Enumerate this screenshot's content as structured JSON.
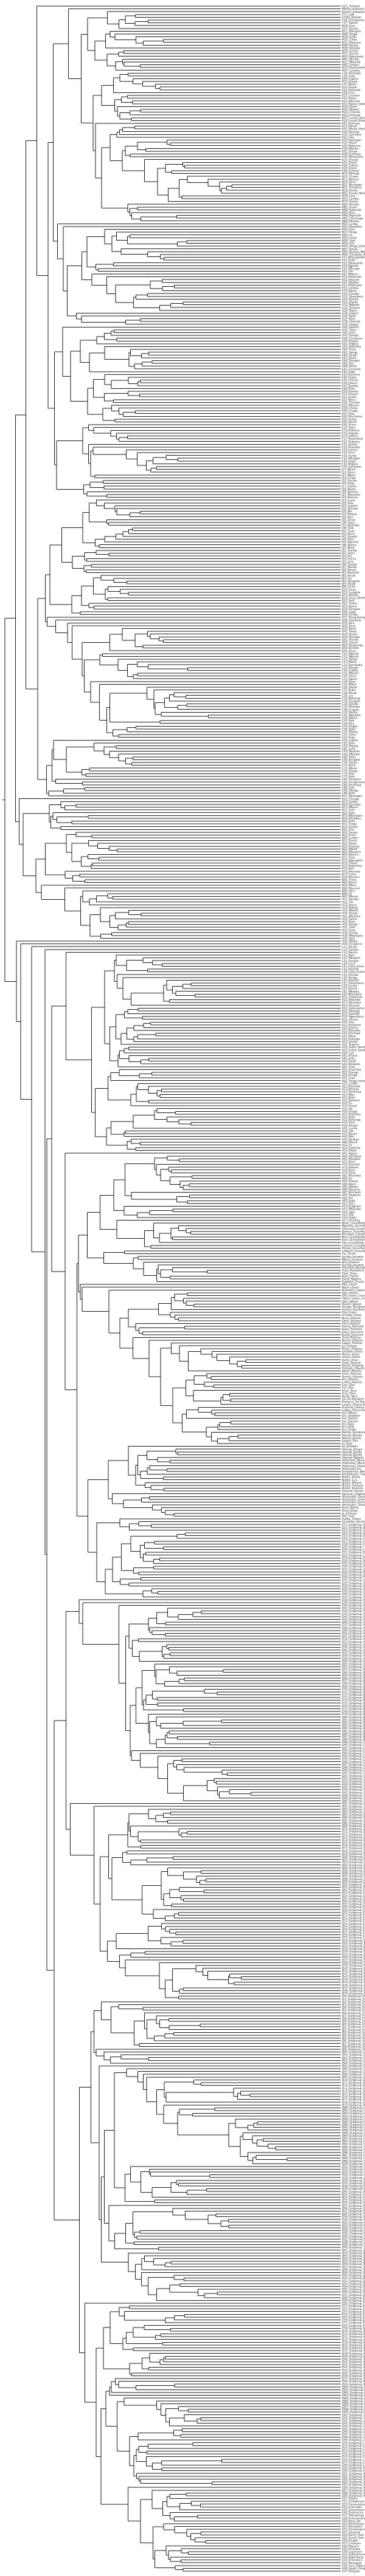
{
  "figure": {
    "type": "phylogenetic-tree",
    "branch_color": "#1a1a1a",
    "label_color": "#222222",
    "background": "#ffffff"
  },
  "tips": [
    "G11_Turkana",
    "Mbola_Jadawain",
    "Beleza_Jadawain",
    "T17_Lodi",
    "Chibit_Bolodo",
    "T19_Chimpanze",
    "T17_Tabola",
    "M18_Ruzi",
    "G11_Kasulu",
    "B11_Vaingola",
    "M46_Tonga",
    "M30_Ulafu",
    "M12_Chibu",
    "M11_Mwanza",
    "M40_Nyayo",
    "M36_Sioneke",
    "N18_Louisa",
    "M21_Kansiri",
    "M24_Wakaheka",
    "M41_Murafu",
    "M17_Mbunda",
    "M45_Sampo",
    "M39_Nyakalamba",
    "M37_Lunyiko",
    "L19_Vimango",
    "L18_Suku",
    "K40_Ingana",
    "B10_Jitaala",
    "L21_Naulo",
    "K23_Myala",
    "K16_Bukwala",
    "K18_Lina",
    "K17_Lucema",
    "K21_Kaqui",
    "K22_Mbunda",
    "K15_Nguon_Kalohu",
    "M34_Kaolo",
    "M10_Malawi",
    "M23_Chanda",
    "M20_Kalenge",
    "M27_Lunda_Ishinde",
    "K14_Lunda_Kazembe",
    "K41_Kamaya",
    "K11_Nkoya",
    "K42_Nkoya_Mashasha",
    "K30_Nyengo",
    "K31_Lyamaka",
    "K12_Fwe",
    "K33_Kwangali",
    "K32_Mashi",
    "K35_Makoma",
    "K34_Mbowe",
    "K43_Simaa",
    "K39_Imilangu",
    "K36_Mbukushu",
    "K37_Shanjo",
    "K24_Totela",
    "K26_Subiya",
    "K19_Sanjo",
    "K38_Kuhane",
    "N24_Nsenga",
    "N15_Chewa",
    "N13_Nyanja",
    "N20_Sena",
    "N21_Nyungwe",
    "N31_Tumbuka",
    "N28_Kunda",
    "N41_Kunda_Ntakwa",
    "M70_Lala",
    "M71_Lamba",
    "M72_Swaka",
    "M62_Bemba",
    "M61_Aushi",
    "M60_Kabende",
    "M63_Bisa",
    "M64_Ngumbo",
    "M65_Chishinga",
    "M66_Mukulu",
    "M52_Lungu",
    "M51_Mambwe",
    "M53_Fipa",
    "N23_Tonga",
    "M50_Ila",
    "M53_Lenje",
    "M54_Sala",
    "M55_Soli",
    "M56_Tonga_Zambia",
    "M57_Totela",
    "M42_Nyanja_Malawi",
    "M43_Tumbuka_Malawi",
    "P11_Ndengeleko",
    "P12_Ruihi",
    "P13_Matuumbi",
    "P14_Ngindo",
    "P15_Mbunga",
    "P21_Yao",
    "P22_Mwera",
    "P23_Makonde",
    "P24_Ndonde",
    "P25_Mabiha",
    "P31_Makhuwa",
    "P32_Lomwe",
    "P33_Ngulu",
    "P34_Chuabo",
    "G23_Shambala",
    "G24_Bondei",
    "G31_Zigula",
    "G32_Ngwele",
    "G33_Zaramo",
    "G34_Ngulu",
    "G35_Luguru",
    "G36_Kami",
    "G37_Kutu",
    "G38_Vidunda",
    "G39_Sagala",
    "G40_Swahili",
    "G41_Tikuu",
    "G42_Amu",
    "G43_Pemba",
    "G44_Comorian",
    "G50_Pogolo",
    "G51_Pogoro",
    "G52_Ndamba",
    "G60_Hehe",
    "G61_Sangu",
    "G62_Kinga",
    "G63_Bena",
    "G64_Pangwa",
    "G65_Kisi",
    "G66_Wanji",
    "E41_Giryama",
    "E42_Digo",
    "E43_Duruma",
    "E44_Rabai",
    "E45_Chonyi",
    "E46_Jibana",
    "E47_Kambe",
    "E48_Ribe",
    "E50_Kamba",
    "E51_Kikuyu",
    "E52_Embu",
    "E53_Meru",
    "E54_Tharaka",
    "E55_Mbeere",
    "E56_Chuka",
    "E60_Chaga",
    "E61_Rwo",
    "E62_Machame",
    "E63_Vunjo",
    "E64_Mochi",
    "E65_Kiseri",
    "E70_Taita",
    "E71_Pokomo",
    "E72_Sagala",
    "E73_Gweno",
    "F11_Nyamwezi",
    "F12_Sukuma",
    "F21_Kimbu",
    "F22_Nilamba",
    "F23_Isanzu",
    "F24_Rimi",
    "F25_Irangi",
    "F31_Mbugwe",
    "F32_Gogo",
    "F33_Kagulu",
    "F34_Sandawe",
    "J11_Nyoro",
    "J12_Tooro",
    "J13_Nkore",
    "J14_Chiga",
    "J15_Ganda",
    "J16_Soga",
    "J17_Gwere",
    "J18_Nyole",
    "J19_Saamia",
    "J21_Masaaba",
    "J22_Bukusu",
    "J23_Luyia",
    "J24_Kisa",
    "J25_Logooli",
    "J31_Kerewe",
    "J32_Jita",
    "J33_Kwaya",
    "J34_Ruri",
    "J35_Zinza",
    "J36_Haya",
    "J37_Nyambo",
    "J38_Subi",
    "J41_Gusii",
    "J42_Kuria",
    "J43_Zanaki",
    "J44_Ikizu",
    "J45_Ngurimi",
    "J46_Ikoma",
    "J47_Nata",
    "J51_Hunde",
    "J52_Havu",
    "J53_Shi",
    "J54_Fuliiru",
    "J55_Vira",
    "J56_Tembo",
    "J57_Nande",
    "J58_Konzo",
    "J61_Rwanda",
    "J62_Rundi",
    "J63_Ha",
    "J64_Hangaza",
    "J65_Shubi",
    "J66_Vinza",
    "D11_Enya",
    "D12_Lengola",
    "D13_Mituku",
    "D14_Enya_North",
    "D21_Bali",
    "D22_Amba",
    "D23_Komo",
    "D24_Songola",
    "D25_Lega",
    "D26_Zimba",
    "D27_Bangubangu",
    "D28_Holoholo",
    "D31_Bira",
    "D32_Bera",
    "D33_Nyali",
    "D41_Konjo",
    "D42_Nandi",
    "D43_Nyanga",
    "D51_Hunde",
    "D52_Haavu",
    "D53_Nyabungu",
    "D54_Bembe",
    "D55_Buyu",
    "C10_Ngundi",
    "C11_Ngondi",
    "C12_Pande",
    "C13_Mbati",
    "C14_Bomitaba",
    "C15_Bongili",
    "C16_Lobala",
    "C21_Mboshi",
    "C22_Akwa",
    "C23_Ngare",
    "C24_Koyo",
    "C25_Mbosi",
    "C26_Kwala",
    "C27_Kuba",
    "C30_Bangi",
    "C31_Loi",
    "C32_Bobangi",
    "C33_Sengele",
    "C34_Sakata",
    "C35_Ntomba",
    "C36_Lingala",
    "C37_Budza",
    "C41_Ngombe",
    "C42_Bwela",
    "C43_Bati",
    "C44_Boa",
    "C45_Angba",
    "C50_Soko",
    "C51_Mbesa",
    "C52_Sokol",
    "C53_Poke",
    "C54_Lokele",
    "C55_Kele",
    "C61_Mongo",
    "C62_Lalia",
    "C63_Ngando",
    "C64_Ntomba",
    "C65_Bolia",
    "C66_Sengele",
    "C70_Tetela",
    "C71_Kusu",
    "C72_Nkutu",
    "C73_Sungu",
    "C74_Yela",
    "C75_Kela",
    "C81_Dengese",
    "C82_Songomeno",
    "C83_Bushong",
    "C84_Lele",
    "C85_Wongo",
    "C86_Kete",
    "B11_Mpongwe",
    "B12_Orungu",
    "B13_Galwa",
    "B14_Dyumba",
    "B15_Mbumi",
    "B21_Seki",
    "B22_Kele",
    "B23_Mbangwe",
    "B24_Wumbvu",
    "B25_Kota",
    "B31_Tsogo",
    "B32_Kande",
    "B41_Sira",
    "B42_Sangu",
    "B43_Punu",
    "B44_Lumbu",
    "B51_Duma",
    "B52_Nzebi",
    "B53_Tsaangi",
    "B61_Mbete",
    "B62_Mbaama",
    "B63_Ndumu",
    "B71_Teke",
    "B72_Ngungwel",
    "B73_Tsaayi",
    "B74_Ndzindziu",
    "B75_Bali",
    "B76_Mosieno",
    "B77_Fumu",
    "B78_Wuumu",
    "B81_Tiene",
    "B82_Boma",
    "B83_Mfinu",
    "B84_Mpuono",
    "B85_Yans",
    "B86_Di",
    "B87_Mbuun",
    "H11_Bembe",
    "H12_Vili",
    "H13_Kunyi",
    "H14_Ndingi",
    "H15_Mboka",
    "H16_Kongo",
    "H21_Mbundu",
    "H22_Sama",
    "H23_Bolo",
    "H24_Songo",
    "H31_Yaka",
    "H32_Suku",
    "H33_Hungu",
    "H34_Mbangala",
    "H35_Sinji",
    "H41_Mbala",
    "H42_Hungana",
    "L11_Pende",
    "L12_Samba",
    "L13_Kwezo",
    "L21_Kete",
    "L22_Mbagani",
    "L23_Songye",
    "L24_Luna",
    "L31_Luba_Kasai",
    "L32_Kanyok",
    "L33_Luba_Katanga",
    "L34_Hemba",
    "L35_Sanga",
    "L41_Kaonde",
    "L51_Salampasu",
    "L52_Lunda",
    "L53_Ruund",
    "L61_Mbwela",
    "L62_Nkangala",
    "R11_Umbundu",
    "R12_Ndombe",
    "R13_Nyaneka",
    "R14_Khumbi",
    "R21_Kwanyama",
    "R22_Ndonga",
    "R23_Kwambi",
    "R24_Ngandjera",
    "R31_Herero",
    "R41_Yeyi",
    "S11_Korekore",
    "S12_Zezuru",
    "S13_Manyika",
    "S14_Karanga",
    "S15_Ndau",
    "S16_Kalanga",
    "S21_Venda",
    "S31_Tswana",
    "S32_Sotho_North",
    "S33_Sotho_South",
    "S34_Lozi",
    "S41_Xhosa",
    "S42_Zulu",
    "S43_Swati",
    "S44_Ndebele",
    "S51_Tswa",
    "S52_Gwamba",
    "S53_Tsonga",
    "S54_Ronga",
    "S61_Copi",
    "S62_Tonga_Inhambane",
    "A11_Londo",
    "A12_Barombi",
    "A13_Balong",
    "A14_Bonkeng",
    "A15_Mbo",
    "A21_Bafo",
    "A22_Bakweri",
    "A23_Su",
    "A24_Duala",
    "A25_Oli",
    "A26_Pongo",
    "A27_Malimba",
    "A31_Bubi",
    "A32_Batanga",
    "A33_Yasa",
    "A34_Benga",
    "A41_Lundu",
    "A42_Abo",
    "A43_Basaa",
    "A44_Nen",
    "A45_Nyokon",
    "A46_Mandi",
    "A51_Fa",
    "A52_Kaalong",
    "A53_Rikpa",
    "A61_Ngoro",
    "A62_Yambasa",
    "A63_Mangisa",
    "A71_Eton",
    "A72_Ewondo",
    "A73_Bebele",
    "A74_Bulu",
    "A75_Fang",
    "A81_Mvumbo",
    "A82_So",
    "A83_Makaa",
    "A84_Njem",
    "A85_Bekwil",
    "A86_Mpiemo",
    "A87_Bomwali",
    "A91_Kwakum",
    "A92_Pol",
    "A93_Kako",
    "A11_Ekoi",
    "A12_Ejagham",
    "A13_Mbembe",
    "A14_Yako",
    "A15_Efik",
    "A16_Ibibio",
    "A17_Annang",
    "Njem_Grassfields",
    "Ngemba_Grassfields",
    "Ghomala_Grassfields",
    "Bamun_Grassfields",
    "Mundani_Grassfields",
    "Noni_Grassfields",
    "Kom_Grassfields",
    "Oku_Grassfields",
    "Lamnso_Grassfields",
    "Yamba_Grassfields",
    "Limbum_Grassfields",
    "Tiv_Tivoid",
    "Jarawa_Jarawan",
    "Mbula_Jarawan",
    "Bile_Jarawan",
    "Kulung_Jarawan",
    "Mambila_Mambiloid",
    "Vute_Mambiloid",
    "Tikar_Tikar",
    "Batu_Tivoid",
    "Ekoid_Nigeria",
    "Ejagham_Etung",
    "Mbe_Ekoid",
    "Nkem_Ekoid",
    "Bekwarra_Upper_Cross",
    "Yala_Idoma",
    "Efik_Lower_Cross",
    "Obolo_Lower_Cross",
    "Igbo_Igboid",
    "Ikwere_Igboid",
    "Yoruba_Yoruboid",
    "Itsekiri_Yoruboid",
    "Edo_Edoid",
    "Urhobo_Edoid",
    "Nupe_Nupoid",
    "Gbari_Nupoid",
    "Ebira_Nupoid",
    "Idoma_Idomoid",
    "Igala_Yoruboid",
    "Jukun_Jukunoid",
    "Kuteb_Jukunoid",
    "Tarok_Plateau",
    "Berom_Plateau",
    "Eggon_Plateau",
    "Jju_Plateau",
    "Hyam_Plateau",
    "Kambari_Kainji",
    "Reshe_Kainji",
    "Ukaan_Akoko",
    "Ayere_Ahan",
    "Gade_Nupoid",
    "Dendi_Songhay",
    "Fulfulde_Atlantic",
    "Wolof_Atlantic",
    "Serer_Atlantic",
    "Temne_Atlantic",
    "Kisi_Atlantic",
    "Limba_Atlantic",
    "Ewe_Gbe",
    "Fon_Gbe",
    "Akan_Tano",
    "Anyi_Tano",
    "Baule_Tano",
    "Ga_Ga-Dangme",
    "Dangme_Ga-Dangme",
    "Lelemi_Ghana-Togo",
    "Avatime_Ghana-Togo",
    "Logba_Ghana-Togo",
    "Gur_Moore",
    "Gur_Dagbani",
    "Gur_Kasem",
    "Gur_Senufo",
    "Kru_Bete",
    "Kru_Dida",
    "Kru_Grebo",
    "Mande_Bambara",
    "Mande_Mende",
    "Mande_Kpelle",
    "Dogon_Toro",
    "Ijo_Izon",
    "Ijo_Kalabari",
    "Ubangi_Gbaya",
    "Ubangi_Zande",
    "Ubangi_Banda",
    "Ubangi_Ngbaka",
    "Adamawa_Mumuye",
    "Adamawa_Mbum",
    "Adamawa_Chamba",
    "Adamawa_Dii",
    "Kordofanian_Moro",
    "Kordofanian_Tira",
    "Nilotic_Dinka",
    "Nilotic_Luo",
    "Nilotic_Maasai",
    "Nilotic_Turkana",
    "Nilotic_Kalenjin",
    "Saharan_Kanuri",
    "Saharan_Zaghawa",
    "Afroasiatic_Hausa",
    "Afroasiatic_Oromo",
    "Afroasiatic_Somali",
    "Afroasiatic_Amharic",
    "Khoe_Nama",
    "Khoe_Khwe",
    "Ju_Jul'hoan",
    "Taa_!Xoo",
    "Hadza_Hadza",
    "Sandawe_Sandawe",
    "Z11_Outgroup_A",
    "Z12_Outgroup_B",
    "Z13_Outgroup_C",
    "Z14_Outgroup_D",
    "Z15_Outgroup_E",
    "Z16_Outgroup_F",
    "Z17_Outgroup_G",
    "Z18_Outgroup_H",
    "Z19_Outgroup_I",
    "Z20_Outgroup_J",
    "Z21_Outgroup_K",
    "Z22_Outgroup_L",
    "Z23_Outgroup_M",
    "Z24_Outgroup_N",
    "Z25_Outgroup_O",
    "Z26_Outgroup_P",
    "Z27_Outgroup_Q",
    "Z28_Outgroup_R",
    "Z29_Outgroup_S",
    "Z30_Outgroup_T",
    "Z31_Outgroup_U",
    "Z32_Outgroup_V",
    "Z33_Outgroup_W",
    "Z34_Outgroup_X",
    "Z35_Outgroup_Y",
    "Z36_Outgroup_Z",
    "Z37_Outgroup_AA",
    "Z38_Outgroup_AB",
    "Z39_Outgroup_AC",
    "Z40_Outgroup_AD",
    "Z41_Outgroup_AE",
    "Z42_Outgroup_AF",
    "Z43_Outgroup_AG",
    "Z44_Outgroup_AH",
    "Z45_Outgroup_AI",
    "Z46_Outgroup_AJ",
    "Z47_Outgroup_AK",
    "Z48_Outgroup_AL",
    "Z49_Outgroup_AM",
    "Z50_Outgroup_AN",
    "Z51_Outgroup_AO",
    "Z52_Outgroup_AP",
    "Z53_Outgroup_AQ",
    "Z54_Outgroup_AR",
    "Z55_Outgroup_AS",
    "Z56_Outgroup_AT",
    "Z57_Outgroup_AU",
    "Z58_Outgroup_AV",
    "Z59_Outgroup_AW",
    "Z60_Outgroup_AX",
    "Z61_Outgroup_AY",
    "Z62_Outgroup_AZ",
    "Z63_Outgroup_BA",
    "Z64_Outgroup_BB",
    "Z65_Outgroup_BC",
    "Z66_Outgroup_BD",
    "Z67_Outgroup_BE",
    "Z68_Outgroup_BF",
    "Z69_Outgroup_BG",
    "Z70_Outgroup_BH",
    "Z71_Outgroup_BI",
    "Z72_Outgroup_BJ",
    "Z73_Outgroup_BK",
    "Z74_Outgroup_BL",
    "Z75_Outgroup_BM",
    "Z76_Outgroup_BN",
    "Z77_Outgroup_BO",
    "Z78_Outgroup_BP",
    "Z79_Outgroup_BQ",
    "Z80_Outgroup_BR",
    "Z81_Outgroup_BS",
    "Z82_Outgroup_BT",
    "Z83_Outgroup_BU",
    "Z84_Outgroup_BV",
    "Z85_Outgroup_BW",
    "Z86_Outgroup_BX",
    "Z87_Outgroup_BY",
    "Z88_Outgroup_BZ",
    "Z89_Outgroup_CA",
    "Z90_Outgroup_CB",
    "Z91_Outgroup_CC",
    "Z92_Outgroup_CD",
    "Z93_Outgroup_CE",
    "Z94_Outgroup_CF",
    "Z95_Outgroup_CG",
    "Z96_Outgroup_CH",
    "Z97_Outgroup_CI",
    "Z98_Outgroup_CJ",
    "Z99_Outgroup_CK",
    "ZA0_Outgroup_CL",
    "ZA1_Outgroup_CM",
    "ZA2_Outgroup_CN",
    "ZA3_Outgroup_CO",
    "ZA4_Outgroup_CP",
    "ZA5_Outgroup_CQ",
    "ZA6_Outgroup_CR",
    "ZA7_Outgroup_CS",
    "ZA8_Outgroup_CT",
    "ZA9_Outgroup_CU",
    "ZB0_Outgroup_CV",
    "ZB1_Outgroup_CW",
    "ZB2_Outgroup_CX",
    "ZB3_Outgroup_CY",
    "ZB4_Outgroup_CZ",
    "ZB5_Outgroup_DA",
    "ZB6_Outgroup_DB",
    "ZB7_Outgroup_DC",
    "ZB8_Outgroup_DD",
    "ZB9_Outgroup_DE",
    "ZC0_Outgroup_DF",
    "ZC1_Outgroup_DG",
    "ZC2_Outgroup_DH",
    "ZC3_Outgroup_DI",
    "ZC4_Outgroup_DJ",
    "ZC5_Outgroup_DK",
    "ZC6_Outgroup_DL",
    "ZC7_Outgroup_DM",
    "ZC8_Outgroup_DN",
    "ZC9_Outgroup_DO",
    "ZD0_Outgroup_DP",
    "ZD1_Outgroup_DQ",
    "ZD2_Outgroup_DR",
    "ZD3_Outgroup_DS",
    "ZD4_Outgroup_DT",
    "ZD5_Outgroup_DU",
    "ZD6_Outgroup_DV",
    "ZD7_Outgroup_DW",
    "ZD8_Outgroup_DX",
    "ZD9_Outgroup_DY",
    "ZE0_Outgroup_DZ",
    "ZE1_Outgroup_EA",
    "ZE2_Outgroup_EB",
    "ZE3_Outgroup_EC",
    "ZE4_Outgroup_ED",
    "ZE5_Outgroup_EE",
    "ZE6_Outgroup_EF",
    "ZE7_Outgroup_EG",
    "ZE8_Outgroup_EH",
    "ZE9_Outgroup_EI",
    "ZF0_Outgroup_EJ",
    "ZF1_Outgroup_EK",
    "ZF2_Outgroup_EL",
    "ZF3_Outgroup_EM",
    "ZF4_Outgroup_EN",
    "ZF5_Outgroup_EO",
    "ZF6_Outgroup_EP",
    "ZF7_Outgroup_EQ",
    "ZF8_Outgroup_ER",
    "ZF9_Outgroup_ES",
    "ZG0_Outgroup_ET",
    "ZG1_Outgroup_EU",
    "ZG2_Outgroup_EV",
    "ZG3_Outgroup_EW",
    "ZG4_Outgroup_EX",
    "ZG5_Outgroup_EY",
    "ZG6_Outgroup_EZ",
    "ZG7_Outgroup_FA",
    "ZG8_Outgroup_FB",
    "ZG9_Outgroup_FC",
    "ZH0_Outgroup_FD",
    "ZH1_Outgroup_FE",
    "ZH2_Outgroup_FF",
    "ZH3_Outgroup_FG",
    "ZH4_Outgroup_FH",
    "ZH5_Outgroup_FI",
    "ZH6_Outgroup_FJ",
    "ZH7_Outgroup_FK",
    "ZH8_Outgroup_FL",
    "ZH9_Outgroup_FM",
    "ZI0_Outgroup_FN",
    "ZI1_Outgroup_FO",
    "ZI2_Outgroup_FP",
    "ZI3_Outgroup_FQ",
    "ZI4_Outgroup_FR",
    "ZI5_Outgroup_FS",
    "ZI6_Outgroup_FT",
    "ZI7_Outgroup_FU",
    "ZI8_Outgroup_FV",
    "ZI9_Outgroup_FW",
    "ZJ0_Outgroup_FX",
    "ZJ1_Outgroup_FY",
    "ZJ2_Outgroup_FZ",
    "ZJ3_Outgroup_GA",
    "ZJ4_Outgroup_GB",
    "ZJ5_Outgroup_GC",
    "ZJ6_Outgroup_GD",
    "ZJ7_Outgroup_GE",
    "ZJ8_Outgroup_GF",
    "ZJ9_Outgroup_GG",
    "ZK0_Outgroup_GH",
    "ZK1_Outgroup_GI",
    "ZK2_Outgroup_GJ",
    "ZK3_Outgroup_GK",
    "ZK4_Outgroup_GL",
    "ZK5_Outgroup_GM",
    "ZK6_Outgroup_GN",
    "ZK7_Outgroup_GO",
    "ZK8_Outgroup_GP",
    "ZK9_Outgroup_GQ",
    "ZL0_Outgroup_GR",
    "ZL1_Outgroup_GS",
    "ZL2_Outgroup_GT",
    "ZL3_Outgroup_GU",
    "ZL4_Outgroup_GV",
    "ZL5_Outgroup_GW",
    "ZL6_Outgroup_GX",
    "ZL7_Outgroup_GY",
    "ZL8_Outgroup_GZ",
    "ZL9_Outgroup_HA",
    "ZM0_Outgroup_HB",
    "ZM1_Outgroup_HC",
    "ZM2_Outgroup_HD",
    "ZM3_Outgroup_HE",
    "ZM4_Outgroup_HF",
    "ZM5_Outgroup_HG",
    "ZM6_Outgroup_HH",
    "ZM7_Outgroup_HI",
    "ZM8_Outgroup_HJ",
    "ZM9_Outgroup_HK",
    "ZN0_Outgroup_HL",
    "ZN1_Outgroup_HM",
    "ZN2_Outgroup_HN",
    "ZN3_Outgroup_HO",
    "ZN4_Outgroup_HP",
    "ZN5_Outgroup_HQ",
    "ZN6_Outgroup_HR",
    "ZN7_Outgroup_HS",
    "ZN8_Outgroup_HT",
    "ZN9_Outgroup_HU",
    "ZO0_Outgroup_HV",
    "ZO1_Outgroup_HW",
    "ZO2_Outgroup_HX",
    "ZO3_Outgroup_HY",
    "ZO4_Outgroup_HZ",
    "ZO5_Outgroup_IA",
    "ZO6_Outgroup_IB",
    "ZO7_Outgroup_IC",
    "ZO8_Outgroup_ID",
    "ZO9_Outgroup_IE",
    "ZP0_Outgroup_IF",
    "ZP1_Outgroup_IG",
    "ZP2_Outgroup_IH",
    "ZP3_Outgroup_II",
    "ZP4_Outgroup_IJ",
    "ZP5_Outgroup_IK",
    "ZP6_Outgroup_IL",
    "ZP7_Outgroup_IM",
    "ZP8_Outgroup_IN",
    "ZP9_Outgroup_IO",
    "ZQ0_Outgroup_IP",
    "ZQ1_Outgroup_IQ",
    "ZQ2_Outgroup_IR",
    "ZQ3_Outgroup_IS",
    "ZQ4_Outgroup_IT",
    "ZQ5_Outgroup_IU",
    "ZQ6_Outgroup_IV",
    "ZQ7_Outgroup_IW",
    "ZQ8_Outgroup_IX",
    "ZQ9_Outgroup_IY",
    "ZR0_Outgroup_IZ",
    "ZR1_Outgroup_JA",
    "ZR2_Outgroup_JB",
    "ZR3_Outgroup_JC",
    "ZR4_Outgroup_JD",
    "ZR5_Outgroup_JE",
    "ZR6_Outgroup_JF",
    "ZR7_Outgroup_JG",
    "ZR8_Outgroup_JH",
    "ZR9_Outgroup_JI",
    "ZS0_Outgroup_JJ",
    "ZS1_Outgroup_JK",
    "ZS2_Outgroup_JL",
    "ZS3_Outgroup_JM",
    "ZS4_Outgroup_JN",
    "ZS5_Outgroup_JO",
    "ZS6_Outgroup_JP",
    "ZS7_Outgroup_JQ",
    "ZS8_Outgroup_JR",
    "ZS9_Outgroup_JS",
    "ZT0_Outgroup_JT",
    "ZT1_Outgroup_JU",
    "ZT2_Outgroup_JV",
    "ZT3_Outgroup_JW",
    "ZT4_Outgroup_JX",
    "ZT5_Outgroup_JY",
    "ZT6_Outgroup_JZ",
    "ZT7_Outgroup_KA",
    "ZT8_Outgroup_KB",
    "ZT9_Outgroup_KC",
    "ZU0_Outgroup_KD",
    "ZU1_Outgroup_KE",
    "ZU2_Outgroup_KF",
    "ZU3_Outgroup_KG",
    "ZU4_Outgroup_KH",
    "ZU5_Outgroup_KI",
    "ZU6_Outgroup_KJ",
    "ZU7_Outgroup_KK",
    "ZU8_Outgroup_KL",
    "ZU9_Outgroup_KM",
    "ZV0_Outgroup_KN",
    "ZV1_Outgroup_KO",
    "ZV2_Outgroup_KP",
    "ZV3_Outgroup_KQ",
    "ZV4_Outgroup_KR",
    "ZV5_Outgroup_KS",
    "ZV6_Outgroup_KT",
    "ZV7_Outgroup_KU",
    "ZV8_Outgroup_KV",
    "ZV9_Outgroup_KW",
    "ZW0_Outgroup_KX",
    "ZW1_Outgroup_KY",
    "ZW2_Outgroup_KZ",
    "ZW3_Outgroup_LA",
    "ZW4_Outgroup_LB",
    "ZW5_Outgroup_LC",
    "ZW6_Outgroup_LD",
    "ZW7_Outgroup_LE",
    "ZW8_Outgroup_LF",
    "ZW9_Outgroup_LG",
    "ZX0_Outgroup_LH",
    "ZX1_Outgroup_LI",
    "ZX2_Outgroup_LJ",
    "ZX3_Outgroup_LK",
    "ZX4_Outgroup_LL",
    "ZX5_Outgroup_LM",
    "ZX6_Outgroup_LN",
    "ZX7_Outgroup_LO",
    "ZX8_Outgroup_LP",
    "ZX9_Outgroup_LQ",
    "ZY0_Outgroup_LR",
    "ZY1_Outgroup_LS",
    "ZY2_Outgroup_LT",
    "ZY3_Outgroup_LU",
    "ZY4_Outgroup_LV",
    "ZY5_Outgroup_LW",
    "ZY6_Outgroup_LX",
    "ZY7_Outgroup_LY",
    "ZY8_Outgroup_LZ",
    "ZY9_Outgroup_MA",
    "ZZ0_Outgroup_MB",
    "ZZ1_Outgroup_MC",
    "ZZ2_Outgroup_MD",
    "ZZ3_Outgroup_ME",
    "ZZ4_Outgroup_MF",
    "ZZ5_Outgroup_MG",
    "ZZ6_Outgroup_MH",
    "ZZ7_Outgroup_MI",
    "ZZ8_Outgroup_MJ",
    "ZZ9_Outgroup_MK",
    "S11_Toliara",
    "S12_Ambalavao",
    "S13_Fianarantsoa",
    "S14_Antsirabe",
    "S15_Antananarivo",
    "S16_Toamasina",
    "S17_Mahajanga",
    "S18_Antsiranana",
    "S19_Nosy_Be",
    "S20_Morondava",
    "S21_Manakara",
    "S22_Farafangana",
    "S23_Tolanaro",
    "S24_North_Park",
    "S25_South_Park",
    "S26_Kruger",
    "S27_Limpopo",
    "S28_Mopani",
    "S29_Vhembe",
    "S30_Capricorn",
    "S31_Sekhukhune",
    "S32_Waterberg",
    "S33_Ehlanzeni",
    "S34_Nkangala",
    "S35_Gert_Sibande",
    "S36_Upper_Pongola",
    "S37_Pongola"
  ]
}
